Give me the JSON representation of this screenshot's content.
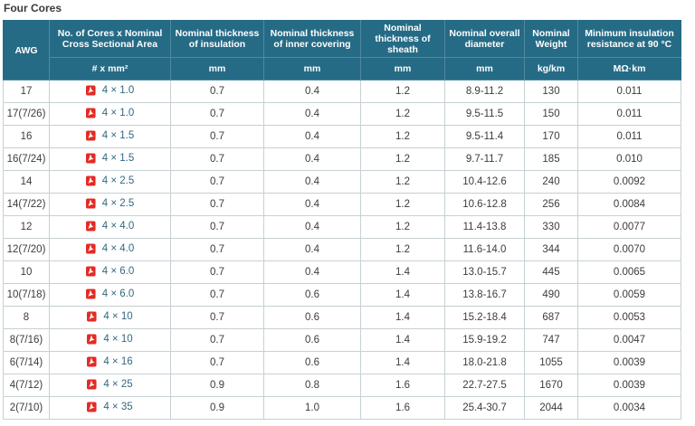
{
  "page": {
    "title": "Four Cores"
  },
  "icons": {
    "pdf": "pdf-icon"
  },
  "colors": {
    "header_bg": "#266b86",
    "header_divider": "#4e8aa0",
    "header_text": "#ffffff",
    "grid_border": "#c6d0d3",
    "body_text": "#3c3c3c",
    "link_text": "#31687f",
    "pdf_icon_red": "#e32b24"
  },
  "table": {
    "columns": [
      {
        "label": "AWG",
        "unit": ""
      },
      {
        "label": "No. of Cores x Nominal Cross Sectional Area",
        "unit": "# x mm²"
      },
      {
        "label": "Nominal thickness of insulation",
        "unit": "mm"
      },
      {
        "label": "Nominal thickness of inner covering",
        "unit": "mm"
      },
      {
        "label": "Nominal thickness of sheath",
        "unit": "mm"
      },
      {
        "label": "Nominal overall diameter",
        "unit": "mm"
      },
      {
        "label": "Nominal Weight",
        "unit": "kg/km"
      },
      {
        "label": "Minimum insulation resistance at 90 °C",
        "unit": "MΩ·km"
      }
    ],
    "rows": [
      {
        "awg": "17",
        "cores": "4 × 1.0",
        "insulation": "0.7",
        "inner_covering": "0.4",
        "sheath": "1.2",
        "diameter": "8.9-11.2",
        "weight": "130",
        "resistance": "0.011"
      },
      {
        "awg": "17(7/26)",
        "cores": "4 × 1.0",
        "insulation": "0.7",
        "inner_covering": "0.4",
        "sheath": "1.2",
        "diameter": "9.5-11.5",
        "weight": "150",
        "resistance": "0.011"
      },
      {
        "awg": "16",
        "cores": "4 × 1.5",
        "insulation": "0.7",
        "inner_covering": "0.4",
        "sheath": "1.2",
        "diameter": "9.5-11.4",
        "weight": "170",
        "resistance": "0.011"
      },
      {
        "awg": "16(7/24)",
        "cores": "4 × 1.5",
        "insulation": "0.7",
        "inner_covering": "0.4",
        "sheath": "1.2",
        "diameter": "9.7-11.7",
        "weight": "185",
        "resistance": "0.010"
      },
      {
        "awg": "14",
        "cores": "4 × 2.5",
        "insulation": "0.7",
        "inner_covering": "0.4",
        "sheath": "1.2",
        "diameter": "10.4-12.6",
        "weight": "240",
        "resistance": "0.0092"
      },
      {
        "awg": "14(7/22)",
        "cores": "4 × 2.5",
        "insulation": "0.7",
        "inner_covering": "0.4",
        "sheath": "1.2",
        "diameter": "10.6-12.8",
        "weight": "256",
        "resistance": "0.0084"
      },
      {
        "awg": "12",
        "cores": "4 × 4.0",
        "insulation": "0.7",
        "inner_covering": "0.4",
        "sheath": "1.2",
        "diameter": "11.4-13.8",
        "weight": "330",
        "resistance": "0.0077"
      },
      {
        "awg": "12(7/20)",
        "cores": "4 × 4.0",
        "insulation": "0.7",
        "inner_covering": "0.4",
        "sheath": "1.2",
        "diameter": "11.6-14.0",
        "weight": "344",
        "resistance": "0.0070"
      },
      {
        "awg": "10",
        "cores": "4 × 6.0",
        "insulation": "0.7",
        "inner_covering": "0.4",
        "sheath": "1.4",
        "diameter": "13.0-15.7",
        "weight": "445",
        "resistance": "0.0065"
      },
      {
        "awg": "10(7/18)",
        "cores": "4 × 6.0",
        "insulation": "0.7",
        "inner_covering": "0.6",
        "sheath": "1.4",
        "diameter": "13.8-16.7",
        "weight": "490",
        "resistance": "0.0059"
      },
      {
        "awg": "8",
        "cores": "4 × 10",
        "insulation": "0.7",
        "inner_covering": "0.6",
        "sheath": "1.4",
        "diameter": "15.2-18.4",
        "weight": "687",
        "resistance": "0.0053"
      },
      {
        "awg": "8(7/16)",
        "cores": "4 × 10",
        "insulation": "0.7",
        "inner_covering": "0.6",
        "sheath": "1.4",
        "diameter": "15.9-19.2",
        "weight": "747",
        "resistance": "0.0047"
      },
      {
        "awg": "6(7/14)",
        "cores": "4 × 16",
        "insulation": "0.7",
        "inner_covering": "0.6",
        "sheath": "1.4",
        "diameter": "18.0-21.8",
        "weight": "1055",
        "resistance": "0.0039"
      },
      {
        "awg": "4(7/12)",
        "cores": "4 × 25",
        "insulation": "0.9",
        "inner_covering": "0.8",
        "sheath": "1.6",
        "diameter": "22.7-27.5",
        "weight": "1670",
        "resistance": "0.0039"
      },
      {
        "awg": "2(7/10)",
        "cores": "4 × 35",
        "insulation": "0.9",
        "inner_covering": "1.0",
        "sheath": "1.6",
        "diameter": "25.4-30.7",
        "weight": "2044",
        "resistance": "0.0034"
      }
    ]
  }
}
